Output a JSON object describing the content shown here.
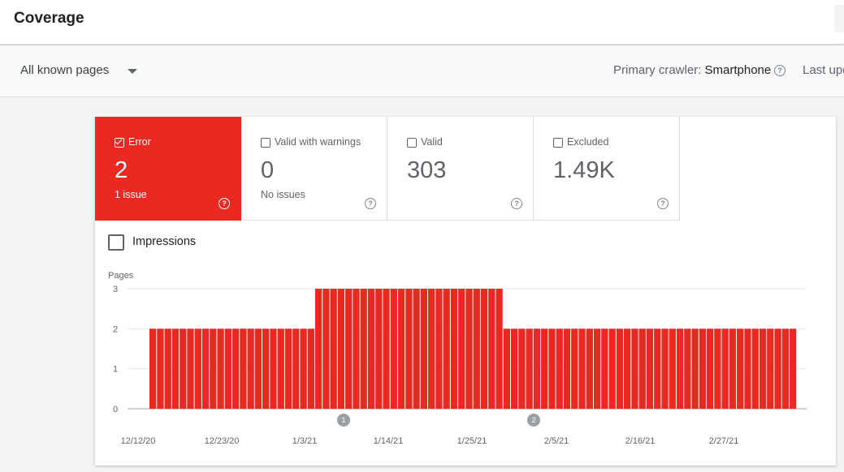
{
  "header": {
    "title": "Coverage"
  },
  "filter": {
    "selected": "All known pages",
    "crawler_label": "Primary crawler:",
    "crawler_value": "Smartphone",
    "last_updated": "Last upd"
  },
  "tiles": [
    {
      "label": "Error",
      "value": "2",
      "sub": "1 issue",
      "selected": true
    },
    {
      "label": "Valid with warnings",
      "value": "0",
      "sub": "No issues",
      "selected": false
    },
    {
      "label": "Valid",
      "value": "303",
      "sub": "",
      "selected": false
    },
    {
      "label": "Excluded",
      "value": "1.49K",
      "sub": "",
      "selected": false
    }
  ],
  "impressions": {
    "label": "Impressions",
    "checked": false
  },
  "colors": {
    "error": "#ea2a22",
    "annotation": "#9aa0a6",
    "grid": "#e8eaed"
  },
  "chart_data": {
    "type": "bar",
    "ylabel": "Pages",
    "ylim": [
      0,
      3
    ],
    "yticks": [
      "0",
      "1",
      "2",
      "3"
    ],
    "xtick_labels": [
      "12/12/20",
      "12/23/20",
      "1/3/21",
      "1/14/21",
      "1/25/21",
      "2/5/21",
      "2/16/21",
      "2/27/21"
    ],
    "values": [
      2,
      2,
      2,
      2,
      2,
      2,
      2,
      2,
      2,
      2,
      2,
      2,
      2,
      2,
      2,
      2,
      2,
      2,
      2,
      2,
      2,
      2,
      3,
      3,
      3,
      3,
      3,
      3,
      3,
      3,
      3,
      3,
      3,
      3,
      3,
      3,
      3,
      3,
      3,
      3,
      3,
      3,
      3,
      3,
      3,
      3,
      3,
      2,
      2,
      2,
      2,
      2,
      2,
      2,
      2,
      2,
      2,
      2,
      2,
      2,
      2,
      2,
      2,
      2,
      2,
      2,
      2,
      2,
      2,
      2,
      2,
      2,
      2,
      2,
      2,
      2,
      2,
      2,
      2,
      2,
      2,
      2,
      2,
      2,
      2,
      2
    ],
    "series_color": "#ea2a22",
    "annotations": [
      "1",
      "2"
    ]
  }
}
